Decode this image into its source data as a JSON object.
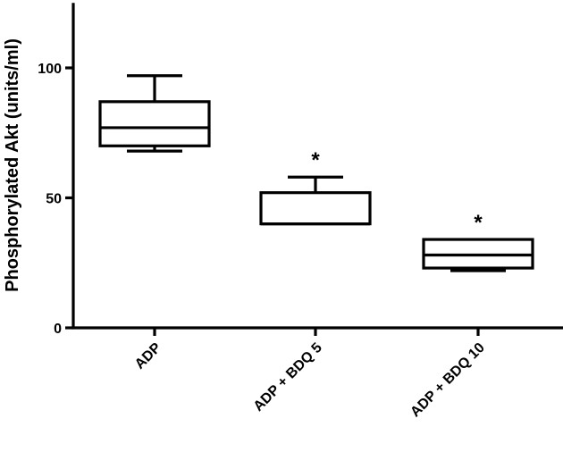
{
  "chart_data": {
    "type": "box",
    "title": "",
    "xlabel": "",
    "ylabel": "Phosphorylated Akt (units/ml)",
    "ylim": [
      0,
      125
    ],
    "yticks": [
      0,
      50,
      100
    ],
    "ytick_labels": [
      "0",
      "50",
      "100"
    ],
    "grid": false,
    "categories": [
      "ADP",
      "ADP + BDQ 5",
      "ADP + BDQ 10"
    ],
    "boxes": [
      {
        "category": "ADP",
        "min": 68,
        "q1": 70,
        "median": 77,
        "q3": 87,
        "max": 97,
        "annotation": ""
      },
      {
        "category": "ADP + BDQ 5",
        "min": 40,
        "q1": 40,
        "median": 40,
        "q3": 52,
        "max": 58,
        "annotation": "*"
      },
      {
        "category": "ADP + BDQ 10",
        "min": 22,
        "q1": 23,
        "median": 28,
        "q3": 34,
        "max": 34,
        "annotation": "*"
      }
    ]
  }
}
